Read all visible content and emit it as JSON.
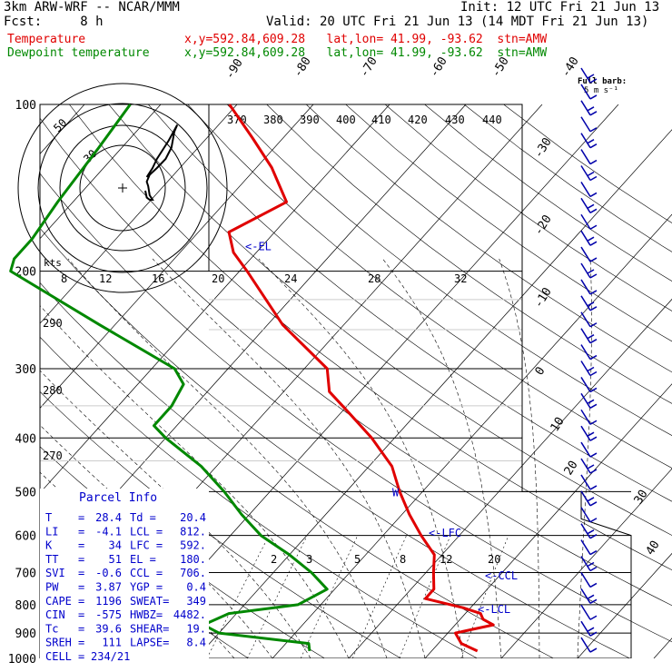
{
  "header": {
    "model": "3km ARW-WRF -- NCAR/MMM",
    "init": "Init: 12 UTC Fri 21 Jun 13",
    "fcst": "Fcst:     8 h",
    "valid": "Valid: 20 UTC Fri 21 Jun 13 (14 MDT Fri 21 Jun 13)",
    "temp_label": "Temperature",
    "temp_loc": "x,y=592.84,609.28   lat,lon= 41.99, -93.62  stn=AMW",
    "dew_label": "Dewpoint temperature",
    "dew_loc": "x,y=592.84,609.28   lat,lon= 41.99, -93.62  stn=AMW"
  },
  "barb_legend": {
    "line1": "Full barb:",
    "line2": "5 m s⁻¹"
  },
  "colors": {
    "temperature": "#e00000",
    "dewpoint": "#008800",
    "annotation": "#0000cc",
    "grid": "#000000"
  },
  "chart_data": [
    {
      "type": "line",
      "title": "",
      "pressure_levels_hPa": [
        100,
        200,
        300,
        400,
        500,
        600,
        700,
        800,
        900,
        1000
      ],
      "pressure_labels": [
        "100",
        "200",
        "300",
        "400",
        "500",
        "600",
        "700",
        "800",
        "900",
        "1000"
      ],
      "isotherm_labels_C": [
        "-90",
        "-80",
        "-70",
        "-60",
        "-50",
        "-40",
        "-30",
        "-20",
        "-10",
        "0",
        "10",
        "20",
        "30",
        "40"
      ],
      "theta_labels_K": [
        "370",
        "380",
        "390",
        "400",
        "410",
        "420",
        "430",
        "440"
      ],
      "mixing_ratio_labels_g_per_kg": [
        "2",
        "3",
        "5",
        "8",
        "12",
        "20"
      ],
      "series": [
        {
          "name": "Temperature",
          "color": "#e00000",
          "points": [
            [
              100,
              -71
            ],
            [
              115,
              -64
            ],
            [
              130,
              -58
            ],
            [
              150,
              -52
            ],
            [
              170,
              -56
            ],
            [
              185,
              -53
            ],
            [
              200,
              -49
            ],
            [
              250,
              -38
            ],
            [
              300,
              -27
            ],
            [
              330,
              -24
            ],
            [
              360,
              -19
            ],
            [
              400,
              -13
            ],
            [
              450,
              -7
            ],
            [
              500,
              -3
            ],
            [
              550,
              1
            ],
            [
              600,
              5
            ],
            [
              650,
              9
            ],
            [
              700,
              11
            ],
            [
              750,
              13
            ],
            [
              780,
              13
            ],
            [
              810,
              19
            ],
            [
              830,
              22
            ],
            [
              850,
              23
            ],
            [
              870,
              25
            ],
            [
              900,
              21
            ],
            [
              940,
              23
            ],
            [
              970,
              26
            ]
          ]
        },
        {
          "name": "Dewpoint temperature",
          "color": "#008800",
          "points": [
            [
              100,
              -84
            ],
            [
              120,
              -83
            ],
            [
              150,
              -82
            ],
            [
              175,
              -81
            ],
            [
              190,
              -81
            ],
            [
              200,
              -80
            ],
            [
              250,
              -62
            ],
            [
              300,
              -47
            ],
            [
              320,
              -44
            ],
            [
              350,
              -43
            ],
            [
              380,
              -43
            ],
            [
              400,
              -40
            ],
            [
              450,
              -32
            ],
            [
              500,
              -26
            ],
            [
              550,
              -21
            ],
            [
              600,
              -16
            ],
            [
              650,
              -10
            ],
            [
              700,
              -5
            ],
            [
              750,
              -1
            ],
            [
              800,
              -3
            ],
            [
              830,
              -11
            ],
            [
              870,
              -13
            ],
            [
              900,
              -10
            ],
            [
              940,
              3
            ],
            [
              970,
              4
            ]
          ]
        }
      ],
      "annotations": [
        {
          "label": "<-EL",
          "pressure": 180
        },
        {
          "label": "W",
          "pressure": 500
        },
        {
          "label": "<-LFC",
          "pressure": 592
        },
        {
          "label": "<-CCL",
          "pressure": 706
        },
        {
          "label": "<-LCL",
          "pressure": 812
        }
      ]
    },
    {
      "type": "scatter",
      "title": "",
      "unit_label": "kts",
      "ring_labels": [
        "10",
        "30",
        "50"
      ],
      "hodograph_points": [
        [
          0,
          0
        ],
        [
          1,
          -3
        ],
        [
          3,
          -4
        ],
        [
          5,
          -4
        ],
        [
          3,
          -2
        ],
        [
          2,
          2
        ],
        [
          1,
          4
        ],
        [
          3,
          7
        ],
        [
          8,
          10
        ],
        [
          14,
          14
        ],
        [
          18,
          19
        ],
        [
          20,
          26
        ],
        [
          22,
          29
        ],
        [
          16,
          22
        ],
        [
          12,
          18
        ],
        [
          8,
          14
        ],
        [
          5,
          10
        ],
        [
          1,
          6
        ]
      ]
    }
  ],
  "stability_axis_labels": [
    "8",
    "12",
    "16",
    "20",
    "24",
    "28",
    "32"
  ],
  "left_labels": [
    "290",
    "280",
    "270"
  ],
  "parcel_info": {
    "title": "Parcel Info",
    "rows": [
      {
        "l_key": "T",
        "l_val": "28.4",
        "r_key": "Td",
        "r_val": "20.4"
      },
      {
        "l_key": "LI",
        "l_val": "-4.1",
        "r_key": "LCL",
        "r_val": "812."
      },
      {
        "l_key": "K",
        "l_val": "34",
        "r_key": "LFC",
        "r_val": "592."
      },
      {
        "l_key": "TT",
        "l_val": "51",
        "r_key": "EL",
        "r_val": "180."
      },
      {
        "l_key": "SVI",
        "l_val": "-0.6",
        "r_key": "CCL",
        "r_val": "706."
      },
      {
        "l_key": "PW",
        "l_val": "3.87",
        "r_key": "YGP",
        "r_val": "0.4"
      },
      {
        "l_key": "CAPE",
        "l_val": "1196",
        "r_key": "SWEAT",
        "r_val": "349"
      },
      {
        "l_key": "CIN",
        "l_val": "-575",
        "r_key": "HWBZ",
        "r_val": "4482."
      },
      {
        "l_key": "Tc",
        "l_val": "39.6",
        "r_key": "SHEAR",
        "r_val": "19."
      },
      {
        "l_key": "SREH",
        "l_val": "111",
        "r_key": "LAPSE",
        "r_val": "8.4"
      },
      {
        "l_key": "CELL",
        "l_val": "234/21",
        "r_key": "",
        "r_val": ""
      }
    ]
  },
  "wind_barbs": {
    "count": 36
  }
}
